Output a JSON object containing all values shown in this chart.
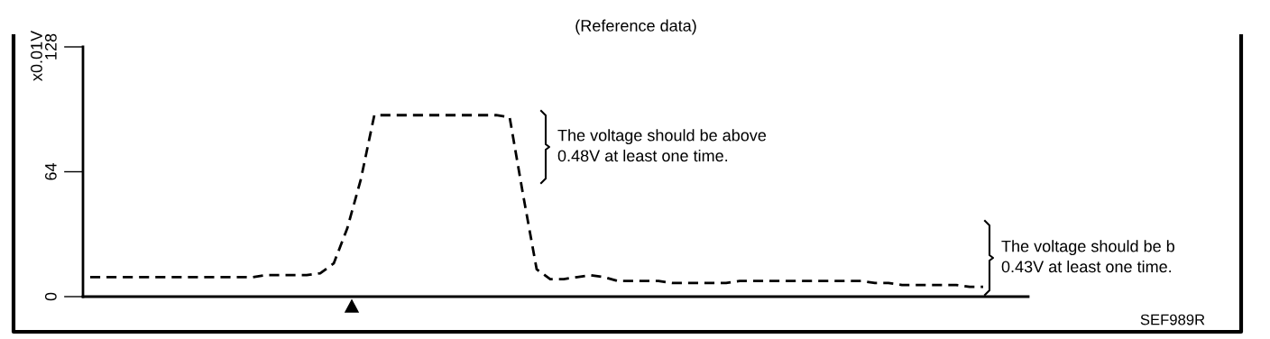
{
  "chart_data": {
    "type": "line",
    "title": "(Reference data)",
    "ylabel": "x0.01V",
    "categories": [
      null,
      null,
      null,
      null,
      null,
      null,
      null,
      null,
      null,
      null,
      null,
      null,
      null,
      null,
      null,
      null,
      null,
      null,
      null,
      null,
      null,
      null,
      null,
      null,
      null,
      null,
      null,
      null,
      null,
      null,
      null,
      null,
      null,
      null,
      null,
      null,
      null,
      null,
      null,
      null,
      null,
      null,
      null,
      null,
      null,
      null,
      null,
      null,
      null,
      null,
      null,
      null,
      null,
      null,
      null,
      null,
      null,
      null,
      null,
      null,
      null,
      null,
      null,
      null,
      null,
      null,
      null
    ],
    "series": [
      {
        "color": "#000000",
        "values": [
          10,
          10,
          10,
          10,
          10,
          10,
          10,
          10,
          10,
          10,
          10,
          10,
          10,
          11,
          11,
          11,
          11,
          12,
          17,
          35,
          60,
          93,
          93,
          93,
          93,
          93,
          93,
          93,
          93,
          93,
          93,
          92,
          52,
          14,
          9,
          9,
          10,
          11,
          10,
          8,
          8,
          8,
          8,
          7,
          7,
          7,
          7,
          7,
          8,
          8,
          8,
          8,
          8,
          8,
          8,
          8,
          8,
          8,
          7,
          7,
          6,
          6,
          6,
          6,
          6,
          5,
          5
        ]
      }
    ],
    "ylim": [
      0,
      128
    ],
    "yticks": [
      0,
      64,
      128
    ],
    "tick_labels": "y",
    "line_style": "dashed",
    "grid": false,
    "legend": false,
    "annotations": [
      "The voltage should be above\n0.48V at least one time.",
      "The voltage should be b\n0.43V at least one time.",
      "SEF989R"
    ]
  }
}
